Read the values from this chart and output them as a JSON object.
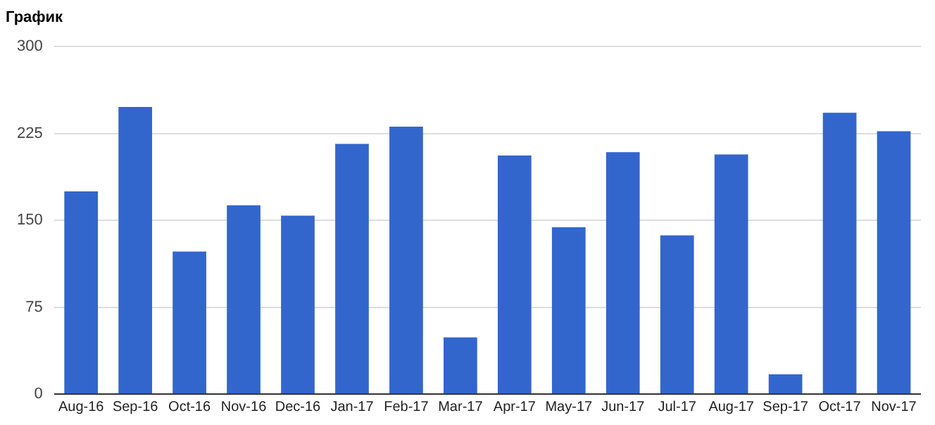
{
  "chart_data": {
    "type": "bar",
    "title": "График",
    "categories": [
      "Aug-16",
      "Sep-16",
      "Oct-16",
      "Nov-16",
      "Dec-16",
      "Jan-17",
      "Feb-17",
      "Mar-17",
      "Apr-17",
      "May-17",
      "Jun-17",
      "Jul-17",
      "Aug-17",
      "Sep-17",
      "Oct-17",
      "Nov-17"
    ],
    "values": [
      175,
      248,
      123,
      163,
      154,
      216,
      231,
      49,
      206,
      144,
      209,
      137,
      207,
      17,
      243,
      227
    ],
    "color": "#3366cc",
    "ylim": [
      0,
      300
    ],
    "yticks": [
      0,
      75,
      150,
      225,
      300
    ],
    "grid": "y",
    "legend": false
  }
}
